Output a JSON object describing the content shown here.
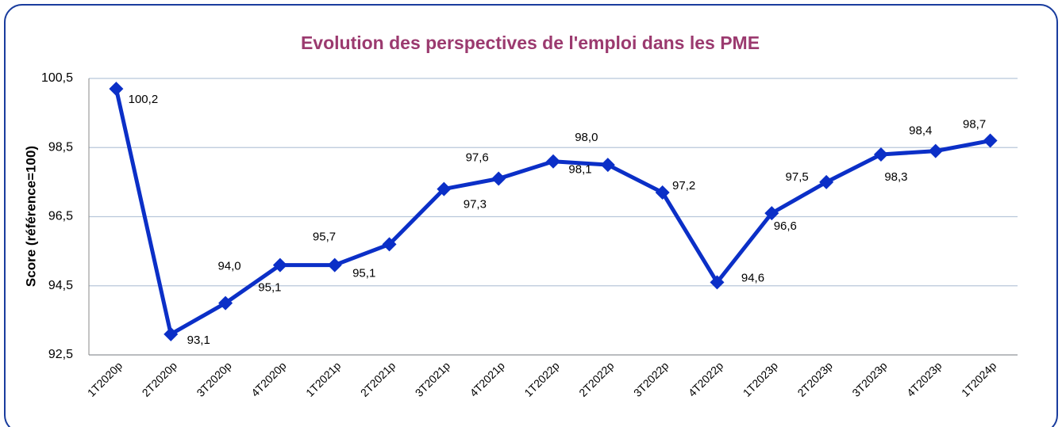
{
  "chart_data": {
    "type": "line",
    "title": "Evolution des perspectives de l'emploi dans les PME",
    "y_label": "Score (référence=100)",
    "categories": [
      "1T2020p",
      "2T2020p",
      "3T2020p",
      "4T2020p",
      "1T2021p",
      "2T2021p",
      "3T2021p",
      "4T2021p",
      "1T2022p",
      "2T2022p",
      "3T2022p",
      "4T2022p",
      "1T2023p",
      "2T2023p",
      "3T2023p",
      "4T2023p",
      "1T2024p"
    ],
    "series": [
      {
        "name": "Score",
        "color": "#0b2fc7",
        "values": [
          100.2,
          93.1,
          94.0,
          95.1,
          95.1,
          95.7,
          97.3,
          97.6,
          98.1,
          98.0,
          97.2,
          94.6,
          96.6,
          97.5,
          98.3,
          98.4,
          98.7
        ],
        "value_labels": [
          "100,2",
          "93,1",
          "94,0",
          "95,1",
          "95,1",
          "95,7",
          "97,3",
          "97,6",
          "98,1",
          "98,0",
          "97,2",
          "94,6",
          "96,6",
          "97,5",
          "98,3",
          "98,4",
          "98,7"
        ]
      }
    ],
    "ylim": [
      92.5,
      100.5
    ],
    "yticks": [
      {
        "value": 92.5,
        "label": "92,5"
      },
      {
        "value": 94.5,
        "label": "94,5"
      },
      {
        "value": 96.5,
        "label": "96,5"
      },
      {
        "value": 98.5,
        "label": "98,5"
      },
      {
        "value": 100.5,
        "label": "100,5"
      }
    ],
    "grid": true
  }
}
